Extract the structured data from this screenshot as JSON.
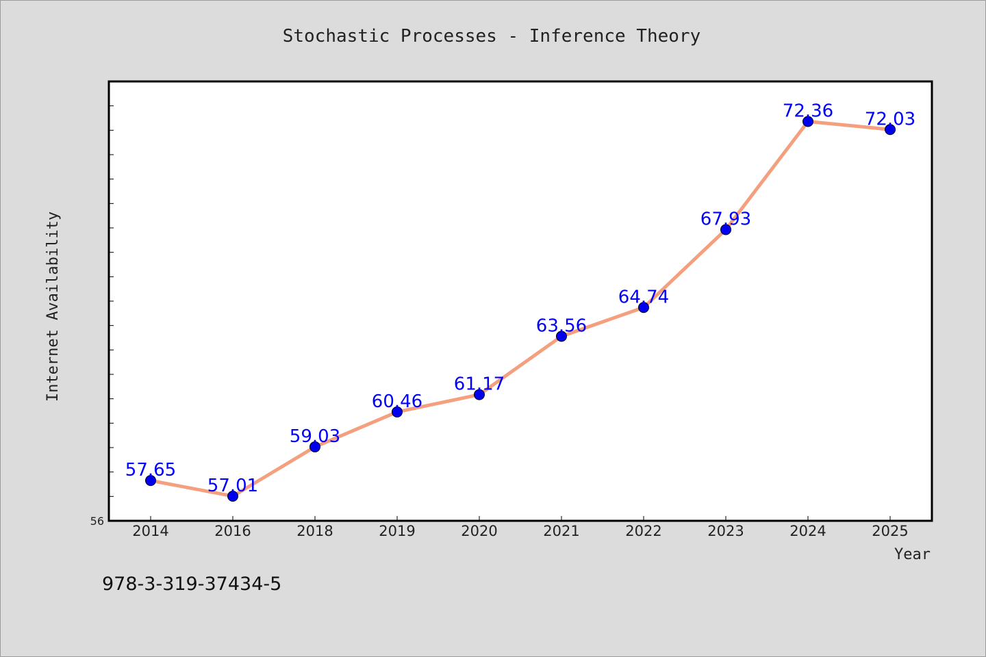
{
  "isbn": "978-3-319-37434-5",
  "colors": {
    "line": "#f4a07e",
    "marker": "#0000ee",
    "data_label": "#0000ff",
    "plot_bg": "#ffffff",
    "page_bg": "#dcdcdc"
  },
  "chart_data": {
    "type": "line",
    "title": "Stochastic Processes - Inference Theory",
    "xlabel": "Year",
    "ylabel": "Internet Availability",
    "categories": [
      "2014",
      "2016",
      "2018",
      "2019",
      "2020",
      "2021",
      "2022",
      "2023",
      "2024",
      "2025"
    ],
    "series": [
      {
        "values": [
          57.65,
          57.01,
          59.03,
          60.46,
          61.17,
          63.56,
          64.74,
          67.93,
          72.36,
          72.03
        ]
      }
    ],
    "value_labels": [
      "57.65",
      "57.01",
      "59.03",
      "60.46",
      "61.17",
      "63.56",
      "64.74",
      "67.93",
      "72.36",
      "72.03"
    ],
    "ylim": [
      56,
      74
    ],
    "ymin_label": "56",
    "y_minor_tick_step": 1,
    "grid": false,
    "legend": "none"
  }
}
